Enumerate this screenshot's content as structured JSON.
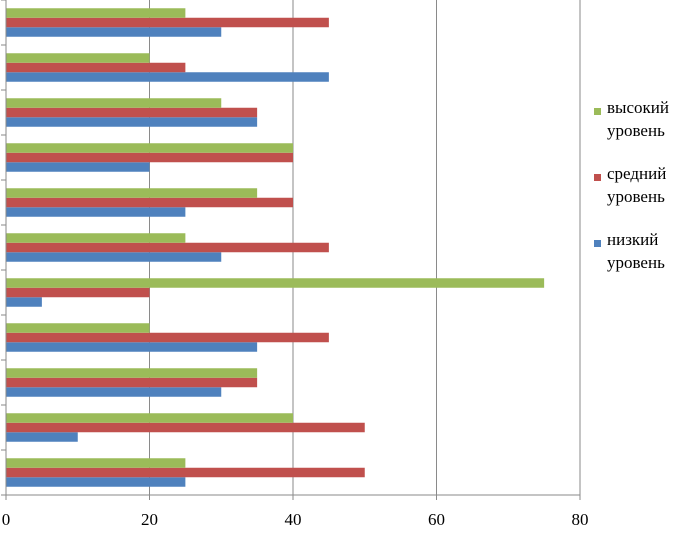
{
  "chart_data": {
    "type": "bar",
    "orientation": "horizontal",
    "title": "",
    "xlabel": "",
    "ylabel": "",
    "xlim": [
      0,
      80
    ],
    "x_ticks": [
      0,
      20,
      40,
      60,
      80
    ],
    "x_tick_labels": [
      "0",
      "20",
      "40",
      "60",
      "80"
    ],
    "grid": "vertical",
    "legend_position": "right",
    "category_order": "bottom-to-top",
    "categories": [
      "",
      "",
      "",
      "",
      "",
      "",
      "",
      "",
      "",
      "",
      ""
    ],
    "series": [
      {
        "name": "низкий уровень",
        "color": "#4f81bd",
        "values": [
          25,
          10,
          30,
          35,
          5,
          30,
          25,
          20,
          35,
          45,
          30
        ]
      },
      {
        "name": "средний уровень",
        "color": "#c0504d",
        "values": [
          50,
          50,
          35,
          45,
          20,
          45,
          40,
          40,
          35,
          25,
          45
        ]
      },
      {
        "name": "высокий уровень",
        "color": "#9bbb59",
        "values": [
          25,
          40,
          35,
          20,
          75,
          25,
          35,
          40,
          30,
          20,
          25
        ]
      }
    ],
    "legend_order": [
      "высокий уровень",
      "средний уровень",
      "низкий уровень"
    ]
  }
}
